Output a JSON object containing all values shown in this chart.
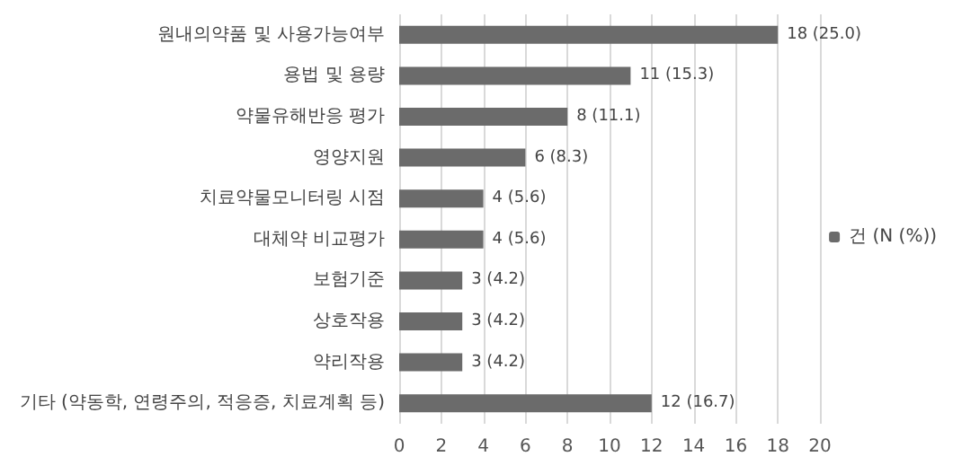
{
  "chart_data": {
    "type": "bar",
    "orientation": "horizontal",
    "categories": [
      "원내의약품 및 사용가능여부",
      "용법 및 용량",
      "약물유해반응 평가",
      "영양지원",
      "치료약물모니터링 시점",
      "대체약 비교평가",
      "보험기준",
      "상호작용",
      "약리작용",
      "기타 (약동학, 연령주의, 적응증, 치료계획 등)"
    ],
    "series": [
      {
        "name": "건 (N (%))",
        "color": "#6b6b6b",
        "values": [
          18,
          11,
          8,
          6,
          4,
          4,
          3,
          3,
          3,
          12
        ],
        "value_labels": [
          "18 (25.0)",
          "11 (15.3)",
          "8 (11.1)",
          "6 (8.3)",
          "4 (5.6)",
          "4 (5.6)",
          "3 (4.2)",
          "3 (4.2)",
          "3 (4.2)",
          "12 (16.7)"
        ]
      }
    ],
    "xlim": [
      0,
      20
    ],
    "xticks": [
      0,
      2,
      4,
      6,
      8,
      10,
      12,
      14,
      16,
      18,
      20
    ],
    "grid": "x",
    "legend": "right"
  }
}
